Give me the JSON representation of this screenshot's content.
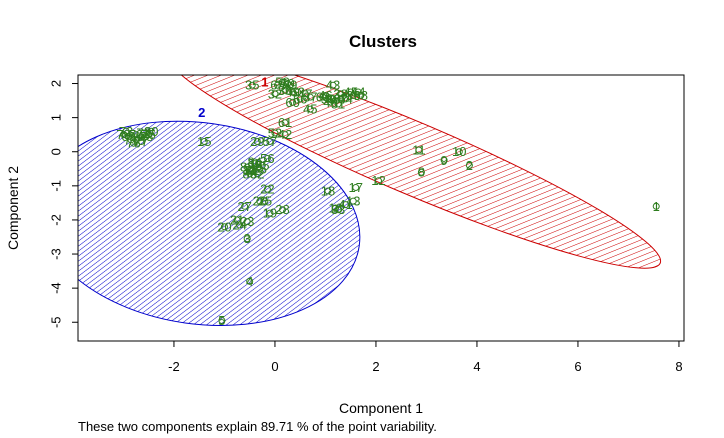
{
  "chart_data": {
    "type": "scatter",
    "title": "Clusters",
    "xlabel": "Component 1",
    "ylabel": "Component 2",
    "subtitle": "These two components explain 89.71 % of the point variability.",
    "xlim": [
      -3.9,
      8.1
    ],
    "ylim": [
      -5.55,
      2.25
    ],
    "xticks": [
      -2,
      0,
      2,
      4,
      6,
      8
    ],
    "yticks": [
      -5,
      -4,
      -3,
      -2,
      -1,
      0,
      1,
      2
    ],
    "grid": false,
    "clusters": [
      {
        "id": "1",
        "color": "#cc0000",
        "center_label": "1",
        "center": [
          -0.2,
          2.05
        ],
        "ellipse": {
          "cx": 2.75,
          "cy": -0.2,
          "rx": 5.3,
          "ry": 1.05,
          "angle_deg": -23
        }
      },
      {
        "id": "2",
        "color": "#0000cc",
        "center_label": "2",
        "center": [
          -1.45,
          1.15
        ],
        "ellipse": {
          "cx": -1.5,
          "cy": -2.1,
          "rx": 3.2,
          "ry": 2.95,
          "angle_deg": -8
        }
      }
    ],
    "points": [
      {
        "label": "1",
        "x": 7.55,
        "y": -1.6
      },
      {
        "label": "2",
        "x": 3.85,
        "y": -0.4
      },
      {
        "label": "3",
        "x": -0.55,
        "y": -2.55
      },
      {
        "label": "4",
        "x": -0.5,
        "y": -3.8
      },
      {
        "label": "5",
        "x": -1.05,
        "y": -4.95
      },
      {
        "label": "8",
        "x": 2.9,
        "y": -0.6
      },
      {
        "label": "9",
        "x": 3.35,
        "y": -0.25
      },
      {
        "label": "10",
        "x": 3.65,
        "y": 0.0
      },
      {
        "label": "11",
        "x": 2.85,
        "y": 0.05
      },
      {
        "label": "12",
        "x": 2.05,
        "y": -0.85
      },
      {
        "label": "13",
        "x": 1.55,
        "y": -1.45
      },
      {
        "label": "15",
        "x": -1.4,
        "y": 0.3
      },
      {
        "label": "16",
        "x": 1.2,
        "y": -1.65
      },
      {
        "label": "17",
        "x": 1.6,
        "y": -1.05
      },
      {
        "label": "18",
        "x": 1.05,
        "y": -1.15
      },
      {
        "label": "19",
        "x": -0.1,
        "y": -1.8
      },
      {
        "label": "20",
        "x": -1.0,
        "y": -2.2
      },
      {
        "label": "21",
        "x": -0.75,
        "y": -2.0
      },
      {
        "label": "22",
        "x": -0.15,
        "y": -1.1
      },
      {
        "label": "23",
        "x": -0.55,
        "y": -2.05
      },
      {
        "label": "24",
        "x": -0.7,
        "y": -2.15
      },
      {
        "label": "25",
        "x": -0.2,
        "y": -1.45
      },
      {
        "label": "26",
        "x": -0.3,
        "y": -1.45
      },
      {
        "label": "27",
        "x": -0.6,
        "y": -1.6
      },
      {
        "label": "28",
        "x": 0.15,
        "y": -1.7
      },
      {
        "label": "29",
        "x": -0.35,
        "y": 0.3
      },
      {
        "label": "30",
        "x": -0.4,
        "y": -0.35
      },
      {
        "label": "31",
        "x": -0.5,
        "y": -0.55
      },
      {
        "label": "32",
        "x": 0.0,
        "y": 1.7
      },
      {
        "label": "33",
        "x": 1.25,
        "y": -1.7
      },
      {
        "label": "35",
        "x": -0.45,
        "y": 1.95
      },
      {
        "label": "36",
        "x": 0.2,
        "y": 1.8
      },
      {
        "label": "37",
        "x": 0.7,
        "y": 1.6
      },
      {
        "label": "38",
        "x": 1.3,
        "y": 1.7
      },
      {
        "label": "39",
        "x": 1.55,
        "y": 1.65
      },
      {
        "label": "40",
        "x": 1.1,
        "y": 1.45
      },
      {
        "label": "41",
        "x": 1.4,
        "y": -1.55
      },
      {
        "label": "42",
        "x": 0.2,
        "y": 0.5
      },
      {
        "label": "43",
        "x": 1.15,
        "y": 1.95
      },
      {
        "label": "44",
        "x": 1.5,
        "y": 1.75
      },
      {
        "label": "45",
        "x": 0.7,
        "y": 1.25
      },
      {
        "label": "46",
        "x": 1.0,
        "y": 1.65
      },
      {
        "label": "47",
        "x": 0.6,
        "y": 1.7
      },
      {
        "label": "48",
        "x": 1.15,
        "y": 1.55
      },
      {
        "label": "49",
        "x": 0.35,
        "y": 1.75
      },
      {
        "label": "50",
        "x": 0.25,
        "y": 2.0
      },
      {
        "label": "51",
        "x": 1.25,
        "y": 1.4
      },
      {
        "label": "52",
        "x": 0.0,
        "y": 0.55
      },
      {
        "label": "53",
        "x": 1.05,
        "y": 1.55
      },
      {
        "label": "54",
        "x": 1.65,
        "y": 1.75
      },
      {
        "label": "55",
        "x": -0.25,
        "y": -0.4
      },
      {
        "label": "56",
        "x": -0.15,
        "y": -0.2
      },
      {
        "label": "57",
        "x": -0.1,
        "y": 0.3
      },
      {
        "label": "58",
        "x": 0.15,
        "y": 2.05
      },
      {
        "label": "59",
        "x": 0.3,
        "y": 1.95
      },
      {
        "label": "60",
        "x": 0.35,
        "y": 1.45
      },
      {
        "label": "61",
        "x": 0.2,
        "y": 0.85
      },
      {
        "label": "62",
        "x": 0.45,
        "y": 1.75
      },
      {
        "label": "63",
        "x": 0.95,
        "y": 1.6
      },
      {
        "label": "64",
        "x": 1.4,
        "y": 1.55
      },
      {
        "label": "65",
        "x": 0.05,
        "y": 1.95
      },
      {
        "label": "66",
        "x": 0.5,
        "y": 1.55
      },
      {
        "label": "67",
        "x": 1.3,
        "y": 1.55
      },
      {
        "label": "68",
        "x": 1.7,
        "y": 1.65
      },
      {
        "label": "69",
        "x": -2.9,
        "y": 0.45
      },
      {
        "label": "70",
        "x": -2.75,
        "y": 0.5
      },
      {
        "label": "71",
        "x": -2.85,
        "y": 0.35
      },
      {
        "label": "72",
        "x": -2.6,
        "y": 0.55
      },
      {
        "label": "73",
        "x": -2.95,
        "y": 0.6
      },
      {
        "label": "74",
        "x": -2.7,
        "y": 0.4
      },
      {
        "label": "75",
        "x": -2.5,
        "y": 0.5
      },
      {
        "label": "76",
        "x": -2.8,
        "y": 0.25
      },
      {
        "label": "77",
        "x": -2.65,
        "y": 0.3
      },
      {
        "label": "78",
        "x": -2.55,
        "y": 0.45
      },
      {
        "label": "79",
        "x": -3.0,
        "y": 0.5
      },
      {
        "label": "80",
        "x": -2.45,
        "y": 0.6
      },
      {
        "label": "81",
        "x": -0.45,
        "y": -0.55
      },
      {
        "label": "82",
        "x": -0.35,
        "y": -0.65
      },
      {
        "label": "83",
        "x": -0.55,
        "y": -0.45
      },
      {
        "label": "84",
        "x": -0.4,
        "y": -0.3
      },
      {
        "label": "85",
        "x": -0.3,
        "y": -0.5
      },
      {
        "label": "86",
        "x": -0.5,
        "y": -0.65
      }
    ]
  }
}
